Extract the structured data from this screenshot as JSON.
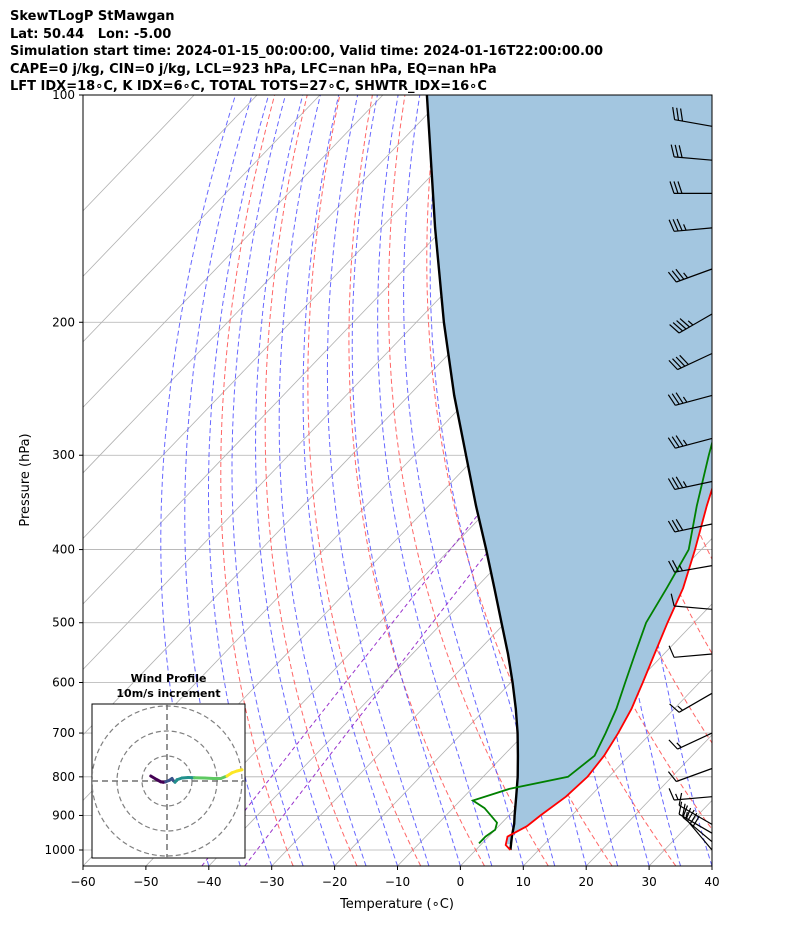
{
  "chart_data": {
    "type": "skewt-logp",
    "title_lines": [
      "SkewTLogP StMawgan",
      "Lat: 50.44   Lon: -5.00",
      "Simulation start time: 2024-01-15_00:00:00, Valid time: 2024-01-16T22:00:00.00",
      "CAPE=0 j/kg, CIN=0 j/kg, LCL=923 hPa, LFC=nan hPa, EQ=nan hPa",
      "LFT IDX=18∘C, K IDX=6∘C, TOTAL TOTS=27∘C, SHWTR_IDX=16∘C"
    ],
    "xlabel": "Temperature (∘C)",
    "ylabel": "Pressure (hPa)",
    "xlim": [
      -60,
      40
    ],
    "ylim_hpa": [
      1050,
      100
    ],
    "x_ticks": [
      -60,
      -50,
      -40,
      -30,
      -20,
      -10,
      0,
      10,
      20,
      30,
      40
    ],
    "y_ticks": [
      100,
      200,
      300,
      400,
      500,
      600,
      700,
      800,
      900,
      1000
    ],
    "grid": true,
    "temperature_profile": {
      "color": "#ff0000",
      "points": [
        [
          1000,
          5.5
        ],
        [
          985,
          4.0
        ],
        [
          960,
          3.0
        ],
        [
          930,
          4.5
        ],
        [
          900,
          5.0
        ],
        [
          850,
          6.2
        ],
        [
          800,
          6.6
        ],
        [
          750,
          6.0
        ],
        [
          700,
          4.8
        ],
        [
          650,
          3.2
        ],
        [
          600,
          1.0
        ],
        [
          550,
          -1.5
        ],
        [
          500,
          -4.2
        ],
        [
          450,
          -7.0
        ],
        [
          400,
          -11.0
        ],
        [
          350,
          -15.8
        ],
        [
          300,
          -21.0
        ],
        [
          250,
          -28.2
        ],
        [
          220,
          -33.8
        ],
        [
          200,
          -37.6
        ],
        [
          190,
          -39.8
        ],
        [
          175,
          -38.8
        ],
        [
          160,
          -31.5
        ],
        [
          145,
          -26.0
        ],
        [
          130,
          -23.3
        ],
        [
          120,
          -22.4
        ],
        [
          110,
          -21.9
        ],
        [
          100,
          -21.4
        ]
      ]
    },
    "dewpoint_profile": {
      "color": "#008000",
      "points": [
        [
          980,
          -0.5
        ],
        [
          960,
          -0.5
        ],
        [
          940,
          0.0
        ],
        [
          920,
          -0.8
        ],
        [
          880,
          -5.0
        ],
        [
          860,
          -8.0
        ],
        [
          830,
          -4.0
        ],
        [
          800,
          3.5
        ],
        [
          750,
          4.5
        ],
        [
          700,
          2.8
        ],
        [
          650,
          0.8
        ],
        [
          600,
          -1.8
        ],
        [
          550,
          -4.6
        ],
        [
          500,
          -7.6
        ],
        [
          450,
          -9.6
        ],
        [
          400,
          -12.0
        ],
        [
          350,
          -17.4
        ],
        [
          300,
          -23.2
        ],
        [
          270,
          -27.0
        ],
        [
          250,
          -30.3
        ],
        [
          220,
          -36.3
        ],
        [
          200,
          -40.6
        ],
        [
          185,
          -42.6
        ],
        [
          175,
          -39.5
        ],
        [
          165,
          -38.0
        ],
        [
          150,
          -40.8
        ],
        [
          130,
          -43.0
        ],
        [
          110,
          -43.0
        ],
        [
          100,
          -44.0
        ]
      ]
    },
    "parcel_profile": {
      "color": "#000000",
      "points": [
        [
          1000,
          5.5
        ],
        [
          980,
          4.6
        ],
        [
          960,
          3.7
        ],
        [
          923,
          2.1
        ],
        [
          900,
          0.9
        ],
        [
          850,
          -1.7
        ],
        [
          800,
          -4.5
        ],
        [
          750,
          -7.7
        ],
        [
          700,
          -11.2
        ],
        [
          650,
          -15.2
        ],
        [
          600,
          -19.7
        ],
        [
          550,
          -24.8
        ],
        [
          500,
          -30.6
        ],
        [
          450,
          -37.0
        ],
        [
          400,
          -44.2
        ],
        [
          350,
          -52.5
        ],
        [
          300,
          -61.8
        ],
        [
          250,
          -72.8
        ],
        [
          200,
          -85.6
        ],
        [
          150,
          -101.4
        ],
        [
          100,
          -123.0
        ]
      ]
    },
    "cin_cape_shading": "#a3c6e0",
    "dry_adiabat_color": "#ff6666",
    "moist_adiabat_color": "#4d4dff",
    "mixing_ratio_color": "#9933cc",
    "wind_barbs": [
      {
        "p": 1000,
        "speed_kt": 30,
        "dir_deg": 320
      },
      {
        "p": 975,
        "speed_kt": 20,
        "dir_deg": 310
      },
      {
        "p": 950,
        "speed_kt": 25,
        "dir_deg": 300
      },
      {
        "p": 925,
        "speed_kt": 10,
        "dir_deg": 300
      },
      {
        "p": 850,
        "speed_kt": 15,
        "dir_deg": 265
      },
      {
        "p": 780,
        "speed_kt": 10,
        "dir_deg": 250
      },
      {
        "p": 700,
        "speed_kt": 15,
        "dir_deg": 245
      },
      {
        "p": 620,
        "speed_kt": 15,
        "dir_deg": 240
      },
      {
        "p": 550,
        "speed_kt": 10,
        "dir_deg": 265
      },
      {
        "p": 480,
        "speed_kt": 10,
        "dir_deg": 275
      },
      {
        "p": 420,
        "speed_kt": 25,
        "dir_deg": 260
      },
      {
        "p": 370,
        "speed_kt": 30,
        "dir_deg": 258
      },
      {
        "p": 325,
        "speed_kt": 35,
        "dir_deg": 258
      },
      {
        "p": 285,
        "speed_kt": 35,
        "dir_deg": 255
      },
      {
        "p": 250,
        "speed_kt": 35,
        "dir_deg": 255
      },
      {
        "p": 220,
        "speed_kt": 40,
        "dir_deg": 245
      },
      {
        "p": 195,
        "speed_kt": 45,
        "dir_deg": 240
      },
      {
        "p": 170,
        "speed_kt": 35,
        "dir_deg": 250
      },
      {
        "p": 150,
        "speed_kt": 35,
        "dir_deg": 265
      },
      {
        "p": 135,
        "speed_kt": 30,
        "dir_deg": 270
      },
      {
        "p": 122,
        "speed_kt": 30,
        "dir_deg": 275
      },
      {
        "p": 110,
        "speed_kt": 30,
        "dir_deg": 280
      }
    ],
    "hodograph": {
      "title_lines": [
        "Wind Profile",
        "10m/s increment"
      ],
      "ring_increment_ms": 10,
      "range_ms": 30,
      "trace_uv": [
        [
          -6.5,
          2.0
        ],
        [
          -4.0,
          0.5
        ],
        [
          -2.5,
          -0.3
        ],
        [
          -1.5,
          -0.5
        ],
        [
          -0.5,
          -0.3
        ],
        [
          1.0,
          0.3
        ],
        [
          2.0,
          1.0
        ],
        [
          2.5,
          0.2
        ],
        [
          3.2,
          -0.5
        ],
        [
          4.0,
          0.5
        ],
        [
          6.0,
          1.2
        ],
        [
          8.5,
          1.4
        ],
        [
          11.0,
          1.3
        ],
        [
          15.0,
          1.2
        ],
        [
          18.5,
          1.0
        ],
        [
          21.5,
          1.0
        ],
        [
          24.0,
          2.0
        ],
        [
          26.0,
          3.3
        ],
        [
          28.0,
          4.0
        ],
        [
          30.0,
          4.5
        ]
      ],
      "trace_colors": [
        "#440154",
        "#3b528b",
        "#21918c",
        "#5ec962",
        "#fde725"
      ]
    }
  }
}
